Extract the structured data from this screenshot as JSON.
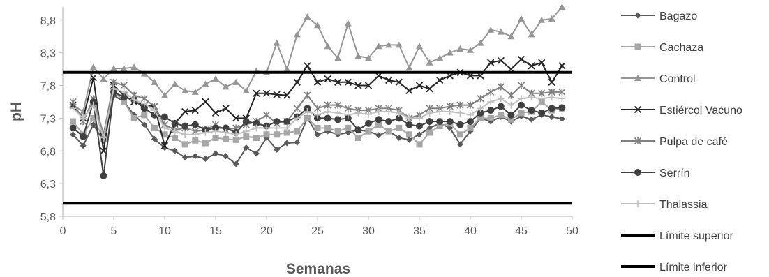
{
  "chart_data": {
    "type": "line",
    "title": "",
    "xlabel": "Semanas",
    "ylabel": "pH",
    "xlim": [
      0,
      50
    ],
    "ylim": [
      5.8,
      9.0
    ],
    "x_ticks": [
      0,
      5,
      10,
      15,
      20,
      25,
      30,
      35,
      40,
      45,
      50
    ],
    "y_ticks": [
      "5,8",
      "6,3",
      "6,8",
      "7,3",
      "7,8",
      "8,3",
      "8,8"
    ],
    "y_tick_values": [
      5.8,
      6.3,
      6.8,
      7.3,
      7.8,
      8.3,
      8.8
    ],
    "grid": false,
    "legend_position": "right",
    "x": [
      1,
      2,
      3,
      4,
      5,
      6,
      7,
      8,
      9,
      10,
      11,
      12,
      13,
      14,
      15,
      16,
      17,
      18,
      19,
      20,
      21,
      22,
      23,
      24,
      25,
      26,
      27,
      28,
      29,
      30,
      31,
      32,
      33,
      34,
      35,
      36,
      37,
      38,
      39,
      40,
      41,
      42,
      43,
      44,
      45,
      46,
      47,
      48,
      49
    ],
    "series": [
      {
        "name": "Bagazo",
        "color": "#595959",
        "marker": "diamond",
        "values": [
          7.05,
          6.88,
          7.2,
          6.95,
          7.65,
          7.55,
          7.35,
          7.2,
          6.98,
          6.85,
          6.8,
          6.7,
          6.72,
          6.68,
          6.76,
          6.72,
          6.6,
          6.85,
          6.76,
          7.0,
          6.82,
          6.92,
          6.93,
          7.3,
          7.05,
          7.1,
          7.05,
          7.08,
          7.12,
          7.1,
          7.04,
          7.1,
          7.0,
          6.97,
          7.05,
          7.15,
          7.22,
          7.15,
          6.9,
          7.1,
          7.3,
          7.25,
          7.32,
          7.25,
          7.33,
          7.28,
          7.35,
          7.32,
          7.29
        ]
      },
      {
        "name": "Cachaza",
        "color": "#a6a6a6",
        "marker": "square",
        "values": [
          7.25,
          7.05,
          7.3,
          6.98,
          7.72,
          7.55,
          7.3,
          7.35,
          7.15,
          7.05,
          7.0,
          6.9,
          6.96,
          6.92,
          7.0,
          6.98,
          6.97,
          7.02,
          7.0,
          7.05,
          7.05,
          7.08,
          7.1,
          7.3,
          7.15,
          7.15,
          7.1,
          7.15,
          7.0,
          7.1,
          7.2,
          7.1,
          7.15,
          7.05,
          6.9,
          7.08,
          7.18,
          7.22,
          7.05,
          7.15,
          7.3,
          7.3,
          7.35,
          7.28,
          7.38,
          7.4,
          7.55,
          7.42,
          7.45
        ]
      },
      {
        "name": "Control",
        "color": "#969696",
        "marker": "triangle",
        "values": [
          7.5,
          7.4,
          8.08,
          7.9,
          8.06,
          8.06,
          8.08,
          7.98,
          7.85,
          7.65,
          7.82,
          7.72,
          7.7,
          7.82,
          7.9,
          7.78,
          7.85,
          7.72,
          8.02,
          8.0,
          8.45,
          8.05,
          8.58,
          8.85,
          8.72,
          8.4,
          8.22,
          8.75,
          8.25,
          8.22,
          8.4,
          8.42,
          8.42,
          8.07,
          8.4,
          8.15,
          8.22,
          8.3,
          8.36,
          8.34,
          8.45,
          8.65,
          8.62,
          8.55,
          8.82,
          8.58,
          8.8,
          8.82,
          9.0
        ]
      },
      {
        "name": "Estiércol Vacuno",
        "color": "#262626",
        "marker": "x",
        "values": [
          7.5,
          7.3,
          7.92,
          6.8,
          7.8,
          7.65,
          7.55,
          7.5,
          7.48,
          6.88,
          7.22,
          7.4,
          7.42,
          7.55,
          7.38,
          7.45,
          7.3,
          7.3,
          7.68,
          7.68,
          7.66,
          7.65,
          7.85,
          8.1,
          7.85,
          7.9,
          7.85,
          7.85,
          7.8,
          7.8,
          7.95,
          7.88,
          7.85,
          7.72,
          7.8,
          7.75,
          7.88,
          7.95,
          8.0,
          7.95,
          7.95,
          8.15,
          8.18,
          8.05,
          8.2,
          8.1,
          8.15,
          7.85,
          8.1
        ]
      },
      {
        "name": "Pulpa de café",
        "color": "#808080",
        "marker": "asterisk",
        "values": [
          7.55,
          7.25,
          7.6,
          7.05,
          7.85,
          7.8,
          7.65,
          7.6,
          7.48,
          7.2,
          7.12,
          7.15,
          7.1,
          7.12,
          7.2,
          7.12,
          7.15,
          7.2,
          7.25,
          7.35,
          7.22,
          7.25,
          7.45,
          7.65,
          7.45,
          7.5,
          7.5,
          7.45,
          7.42,
          7.42,
          7.45,
          7.45,
          7.42,
          7.3,
          7.35,
          7.45,
          7.45,
          7.48,
          7.5,
          7.5,
          7.6,
          7.7,
          7.78,
          7.65,
          7.8,
          7.68,
          7.68,
          7.7,
          7.7
        ]
      },
      {
        "name": "Serrín",
        "color": "#404040",
        "marker": "circle",
        "values": [
          7.15,
          7.02,
          7.55,
          6.42,
          7.7,
          7.62,
          7.58,
          7.45,
          7.35,
          7.32,
          7.22,
          7.18,
          7.2,
          7.12,
          7.15,
          7.15,
          7.08,
          7.25,
          7.22,
          7.18,
          7.25,
          7.25,
          7.32,
          7.45,
          7.3,
          7.3,
          7.28,
          7.3,
          7.12,
          7.22,
          7.28,
          7.25,
          7.3,
          7.2,
          7.18,
          7.25,
          7.25,
          7.25,
          7.2,
          7.25,
          7.38,
          7.42,
          7.48,
          7.35,
          7.5,
          7.42,
          7.38,
          7.45,
          7.46
        ]
      },
      {
        "name": "Thalassia",
        "color": "#bfbfbf",
        "marker": "plus",
        "values": [
          7.45,
          7.3,
          7.5,
          7.0,
          7.75,
          7.7,
          7.58,
          7.52,
          7.42,
          7.15,
          7.1,
          7.05,
          7.05,
          7.08,
          7.1,
          7.08,
          7.05,
          7.1,
          7.15,
          7.15,
          7.15,
          7.15,
          7.3,
          7.4,
          7.35,
          7.4,
          7.38,
          7.35,
          7.38,
          7.36,
          7.4,
          7.4,
          7.38,
          7.3,
          7.3,
          7.38,
          7.4,
          7.4,
          7.38,
          7.35,
          7.45,
          7.55,
          7.6,
          7.5,
          7.6,
          7.62,
          7.6,
          7.62,
          7.6
        ]
      },
      {
        "name": "Límite superior",
        "color": "#000000",
        "marker": "none",
        "constant": 8.0
      },
      {
        "name": "Límite inferior",
        "color": "#000000",
        "marker": "none",
        "constant": 6.0
      }
    ]
  }
}
